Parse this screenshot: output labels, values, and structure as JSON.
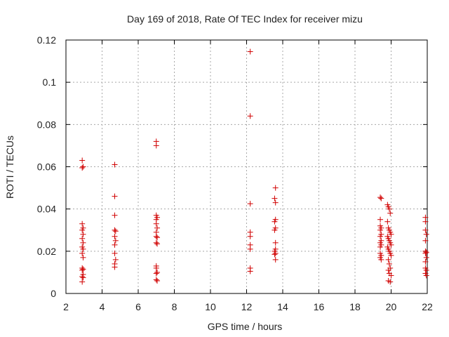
{
  "chart_data": {
    "type": "scatter",
    "title": "Day 169 of 2018, Rate Of TEC Index for receiver mizu",
    "xlabel": "GPS time / hours",
    "ylabel": "ROTI / TECUs",
    "xlim": [
      2,
      22
    ],
    "ylim": [
      0,
      0.12
    ],
    "xticks": [
      2,
      4,
      6,
      8,
      10,
      12,
      14,
      16,
      18,
      20,
      22
    ],
    "yticks": [
      0,
      0.02,
      0.04,
      0.06,
      0.08,
      0.1,
      0.12
    ],
    "xtick_labels": [
      "2",
      "4",
      "6",
      "8",
      "10",
      "12",
      "14",
      "16",
      "18",
      "20",
      "22"
    ],
    "ytick_labels": [
      "0",
      "0.02",
      "0.04",
      "0.06",
      "0.08",
      "0.1",
      "0.12"
    ],
    "grid": true,
    "marker": "+",
    "color": "#d00000",
    "series": [
      {
        "name": "ROTI",
        "points": [
          [
            2.9,
            0.063
          ],
          [
            2.9,
            0.0595
          ],
          [
            2.95,
            0.06
          ],
          [
            2.9,
            0.033
          ],
          [
            2.95,
            0.031
          ],
          [
            2.9,
            0.03
          ],
          [
            2.95,
            0.028
          ],
          [
            2.9,
            0.026
          ],
          [
            2.95,
            0.024
          ],
          [
            2.9,
            0.022
          ],
          [
            2.95,
            0.021
          ],
          [
            2.9,
            0.019
          ],
          [
            2.95,
            0.017
          ],
          [
            2.9,
            0.012
          ],
          [
            2.95,
            0.0115
          ],
          [
            2.9,
            0.011
          ],
          [
            2.95,
            0.009
          ],
          [
            2.9,
            0.008
          ],
          [
            2.95,
            0.0075
          ],
          [
            2.9,
            0.0055
          ],
          [
            4.7,
            0.061
          ],
          [
            4.7,
            0.046
          ],
          [
            4.7,
            0.037
          ],
          [
            4.7,
            0.03
          ],
          [
            4.75,
            0.0295
          ],
          [
            4.7,
            0.027
          ],
          [
            4.75,
            0.025
          ],
          [
            4.7,
            0.023
          ],
          [
            4.7,
            0.019
          ],
          [
            4.75,
            0.016
          ],
          [
            4.7,
            0.014
          ],
          [
            4.7,
            0.0125
          ],
          [
            7.0,
            0.072
          ],
          [
            7.0,
            0.07
          ],
          [
            7.0,
            0.037
          ],
          [
            7.05,
            0.036
          ],
          [
            7.0,
            0.035
          ],
          [
            7.0,
            0.033
          ],
          [
            7.05,
            0.031
          ],
          [
            7.0,
            0.029
          ],
          [
            7.0,
            0.027
          ],
          [
            7.05,
            0.0265
          ],
          [
            7.0,
            0.024
          ],
          [
            7.05,
            0.0235
          ],
          [
            7.0,
            0.013
          ],
          [
            7.0,
            0.012
          ],
          [
            7.05,
            0.01
          ],
          [
            7.0,
            0.0095
          ],
          [
            7.0,
            0.0065
          ],
          [
            7.05,
            0.006
          ],
          [
            12.2,
            0.1145
          ],
          [
            12.2,
            0.084
          ],
          [
            12.2,
            0.0425
          ],
          [
            12.2,
            0.029
          ],
          [
            12.2,
            0.027
          ],
          [
            12.2,
            0.023
          ],
          [
            12.2,
            0.021
          ],
          [
            12.2,
            0.012
          ],
          [
            12.2,
            0.0105
          ],
          [
            13.6,
            0.05
          ],
          [
            13.55,
            0.045
          ],
          [
            13.6,
            0.043
          ],
          [
            13.6,
            0.035
          ],
          [
            13.55,
            0.034
          ],
          [
            13.6,
            0.031
          ],
          [
            13.55,
            0.03
          ],
          [
            13.6,
            0.024
          ],
          [
            13.6,
            0.021
          ],
          [
            13.55,
            0.02
          ],
          [
            13.6,
            0.019
          ],
          [
            13.55,
            0.0185
          ],
          [
            13.6,
            0.016
          ],
          [
            19.4,
            0.0455
          ],
          [
            19.45,
            0.045
          ],
          [
            19.4,
            0.035
          ],
          [
            19.4,
            0.032
          ],
          [
            19.45,
            0.031
          ],
          [
            19.4,
            0.03
          ],
          [
            19.45,
            0.028
          ],
          [
            19.4,
            0.027
          ],
          [
            19.45,
            0.025
          ],
          [
            19.4,
            0.024
          ],
          [
            19.45,
            0.023
          ],
          [
            19.4,
            0.022
          ],
          [
            19.4,
            0.019
          ],
          [
            19.45,
            0.018
          ],
          [
            19.4,
            0.017
          ],
          [
            19.45,
            0.016
          ],
          [
            19.8,
            0.042
          ],
          [
            19.85,
            0.041
          ],
          [
            19.9,
            0.04
          ],
          [
            19.95,
            0.038
          ],
          [
            19.8,
            0.034
          ],
          [
            19.85,
            0.031
          ],
          [
            19.9,
            0.03
          ],
          [
            19.95,
            0.029
          ],
          [
            20.0,
            0.028
          ],
          [
            19.8,
            0.027
          ],
          [
            19.85,
            0.026
          ],
          [
            19.9,
            0.025
          ],
          [
            19.95,
            0.024
          ],
          [
            20.0,
            0.023
          ],
          [
            19.8,
            0.022
          ],
          [
            19.85,
            0.021
          ],
          [
            19.9,
            0.02
          ],
          [
            19.95,
            0.019
          ],
          [
            20.0,
            0.018
          ],
          [
            19.85,
            0.016
          ],
          [
            19.9,
            0.014
          ],
          [
            19.95,
            0.012
          ],
          [
            19.85,
            0.011
          ],
          [
            19.9,
            0.0095
          ],
          [
            20.0,
            0.0085
          ],
          [
            19.85,
            0.006
          ],
          [
            19.95,
            0.0055
          ],
          [
            21.9,
            0.036
          ],
          [
            21.9,
            0.034
          ],
          [
            21.9,
            0.03
          ],
          [
            21.95,
            0.028
          ],
          [
            21.9,
            0.025
          ],
          [
            21.9,
            0.02
          ],
          [
            21.95,
            0.0195
          ],
          [
            21.9,
            0.019
          ],
          [
            21.95,
            0.017
          ],
          [
            21.9,
            0.015
          ],
          [
            21.9,
            0.012
          ],
          [
            21.95,
            0.011
          ],
          [
            21.9,
            0.0095
          ],
          [
            21.95,
            0.0085
          ]
        ]
      }
    ]
  }
}
